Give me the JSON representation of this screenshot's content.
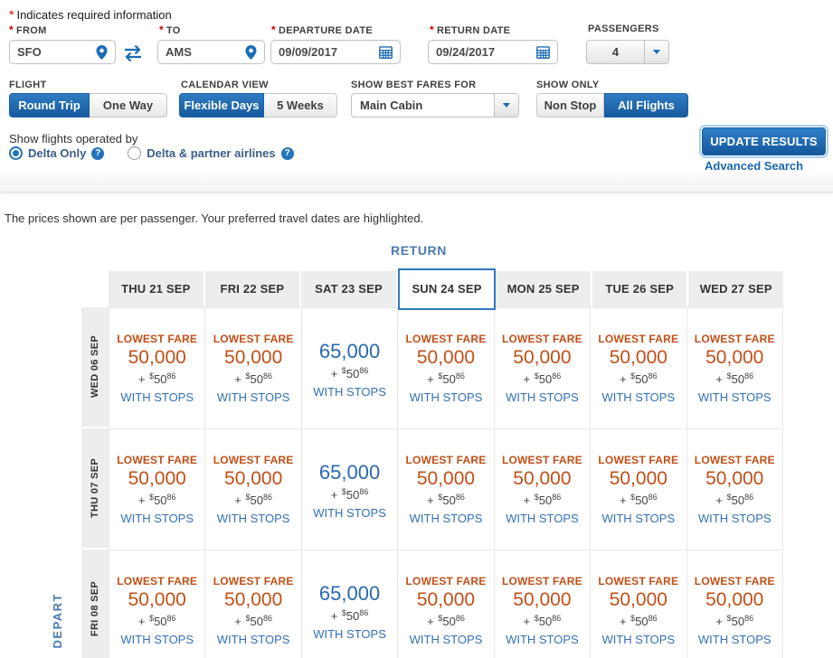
{
  "form": {
    "required_marker": "*",
    "required_note": "Indicates required information",
    "fields": {
      "from": {
        "label": "FROM",
        "value": "SFO",
        "required": true
      },
      "to": {
        "label": "TO",
        "value": "AMS",
        "required": true
      },
      "departure_date": {
        "label": "DEPARTURE DATE",
        "value": "09/09/2017",
        "required": true
      },
      "return_date": {
        "label": "RETURN DATE",
        "value": "09/24/2017",
        "required": true
      },
      "passengers": {
        "label": "PASSENGERS",
        "value": "4",
        "required": false
      }
    },
    "flight_type": {
      "label": "FLIGHT",
      "options": [
        "Round Trip",
        "One Way"
      ],
      "selected": "Round Trip"
    },
    "calendar_view": {
      "label": "CALENDAR VIEW",
      "options": [
        "Flexible Days",
        "5 Weeks"
      ],
      "selected": "Flexible Days"
    },
    "best_fares": {
      "label": "SHOW BEST FARES FOR",
      "value": "Main Cabin"
    },
    "show_only": {
      "label": "SHOW ONLY",
      "options": [
        "Non Stop",
        "All Flights"
      ],
      "selected": "All Flights"
    },
    "operated_by": {
      "label": "Show flights operated by",
      "options": [
        {
          "label": "Delta Only",
          "selected": true
        },
        {
          "label": "Delta & partner airlines",
          "selected": false
        }
      ]
    },
    "update_button": "UPDATE RESULTS",
    "advanced_search_link": "Advanced Search"
  },
  "icons": {
    "help": "?"
  },
  "results": {
    "note": "The prices shown are per passenger. Your preferred travel dates are highlighted.",
    "return_axis_label": "RETURN",
    "depart_axis_label": "DEPART"
  },
  "matrix": {
    "columns": [
      "THU 21 SEP",
      "FRI 22 SEP",
      "SAT 23 SEP",
      "SUN 24 SEP",
      "MON 25 SEP",
      "TUE 26 SEP",
      "WED 27 SEP"
    ],
    "highlighted_column": "SUN 24 SEP",
    "rows": [
      {
        "label": "WED 06 SEP",
        "cells": [
          {
            "badge": "LOWEST FARE",
            "miles": "50,000",
            "tax": "+ $50.86",
            "note": "WITH STOPS"
          },
          {
            "badge": "LOWEST FARE",
            "miles": "50,000",
            "tax": "+ $50.86",
            "note": "WITH STOPS"
          },
          {
            "badge": "",
            "miles": "65,000",
            "tax": "+ $50.86",
            "note": "WITH STOPS"
          },
          {
            "badge": "LOWEST FARE",
            "miles": "50,000",
            "tax": "+ $50.86",
            "note": "WITH STOPS"
          },
          {
            "badge": "LOWEST FARE",
            "miles": "50,000",
            "tax": "+ $50.86",
            "note": "WITH STOPS"
          },
          {
            "badge": "LOWEST FARE",
            "miles": "50,000",
            "tax": "+ $50.86",
            "note": "WITH STOPS"
          },
          {
            "badge": "LOWEST FARE",
            "miles": "50,000",
            "tax": "+ $50.86",
            "note": "WITH STOPS"
          }
        ]
      },
      {
        "label": "THU 07 SEP",
        "cells": [
          {
            "badge": "LOWEST FARE",
            "miles": "50,000",
            "tax": "+ $50.86",
            "note": "WITH STOPS"
          },
          {
            "badge": "LOWEST FARE",
            "miles": "50,000",
            "tax": "+ $50.86",
            "note": "WITH STOPS"
          },
          {
            "badge": "",
            "miles": "65,000",
            "tax": "+ $50.86",
            "note": "WITH STOPS"
          },
          {
            "badge": "LOWEST FARE",
            "miles": "50,000",
            "tax": "+ $50.86",
            "note": "WITH STOPS"
          },
          {
            "badge": "LOWEST FARE",
            "miles": "50,000",
            "tax": "+ $50.86",
            "note": "WITH STOPS"
          },
          {
            "badge": "LOWEST FARE",
            "miles": "50,000",
            "tax": "+ $50.86",
            "note": "WITH STOPS"
          },
          {
            "badge": "LOWEST FARE",
            "miles": "50,000",
            "tax": "+ $50.86",
            "note": "WITH STOPS"
          }
        ]
      },
      {
        "label": "FRI 08 SEP",
        "cells": [
          {
            "badge": "LOWEST FARE",
            "miles": "50,000",
            "tax": "+ $50.86",
            "note": "WITH STOPS"
          },
          {
            "badge": "LOWEST FARE",
            "miles": "50,000",
            "tax": "+ $50.86",
            "note": "WITH STOPS"
          },
          {
            "badge": "",
            "miles": "65,000",
            "tax": "+ $50.86",
            "note": "WITH STOPS"
          },
          {
            "badge": "LOWEST FARE",
            "miles": "50,000",
            "tax": "+ $50.86",
            "note": "WITH STOPS"
          },
          {
            "badge": "LOWEST FARE",
            "miles": "50,000",
            "tax": "+ $50.86",
            "note": "WITH STOPS"
          },
          {
            "badge": "LOWEST FARE",
            "miles": "50,000",
            "tax": "+ $50.86",
            "note": "WITH STOPS"
          },
          {
            "badge": "LOWEST FARE",
            "miles": "50,000",
            "tax": "+ $50.86",
            "note": "WITH STOPS"
          }
        ]
      }
    ]
  },
  "colors": {
    "accent_blue": "#1d6cb7",
    "selected_toggle_blue": "#17599e",
    "fare_orange": "#c24f17",
    "fare_blue": "#2a68b2",
    "stops_link_blue": "#3371b5",
    "highlight_border_blue": "#2f78bd",
    "required_red": "#cc0000"
  }
}
